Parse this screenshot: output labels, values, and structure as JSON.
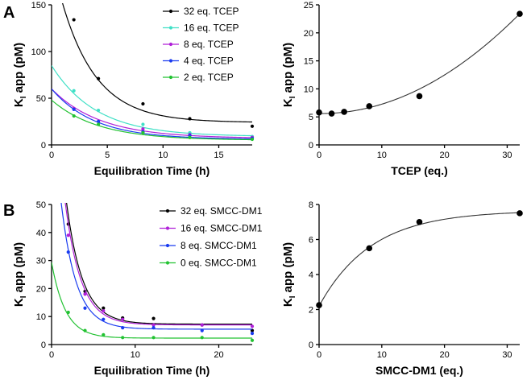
{
  "chart_data": [
    {
      "id": "A-left",
      "panel_label": "A",
      "type": "scatter",
      "xlabel": "Equilibration Time (h)",
      "ylabel_main": "K",
      "ylabel_sub": "I",
      "ylabel_rest": " app (pM)",
      "xlim": [
        0,
        18
      ],
      "ylim": [
        0,
        150
      ],
      "xticks": [
        0,
        5,
        10,
        15
      ],
      "yticks": [
        0,
        50,
        100,
        150
      ],
      "legend": "top-right",
      "series": [
        {
          "name": "32 eq. TCEP",
          "color": "#000000",
          "x": [
            2,
            4.2,
            8.2,
            12.4,
            18
          ],
          "y": [
            134,
            71,
            44,
            28,
            20
          ],
          "fit": {
            "a": 24,
            "b": 175,
            "k": 0.32
          }
        },
        {
          "name": "16 eq. TCEP",
          "color": "#3fe0c6",
          "x": [
            2,
            4.2,
            8.2,
            12.4,
            18
          ],
          "y": [
            58,
            37,
            22,
            13,
            9
          ],
          "fit": {
            "a": 9,
            "b": 76,
            "k": 0.25
          }
        },
        {
          "name": "8 eq. TCEP",
          "color": "#b020d8",
          "x": [
            2,
            4.2,
            8.2,
            12.4,
            18
          ],
          "y": [
            39,
            25,
            17,
            11,
            8
          ],
          "fit": {
            "a": 7,
            "b": 53,
            "k": 0.23
          }
        },
        {
          "name": "4 eq. TCEP",
          "color": "#1a3cf0",
          "x": [
            2,
            4.2,
            8.2,
            12.4,
            18
          ],
          "y": [
            38,
            25,
            14,
            10,
            7
          ],
          "fit": {
            "a": 6,
            "b": 54,
            "k": 0.26
          }
        },
        {
          "name": "2 eq. TCEP",
          "color": "#22c232",
          "x": [
            2,
            4.2,
            8.2,
            12.4,
            18
          ],
          "y": [
            31,
            22,
            13,
            8,
            6
          ],
          "fit": {
            "a": 5,
            "b": 43,
            "k": 0.24
          }
        }
      ]
    },
    {
      "id": "A-right",
      "panel_label": "",
      "type": "scatter",
      "xlabel": "TCEP (eq.)",
      "ylabel_main": "K",
      "ylabel_sub": "I",
      "ylabel_rest": " app (pM)",
      "xlim": [
        0,
        32
      ],
      "ylim": [
        0,
        25
      ],
      "xticks": [
        0,
        10,
        20,
        30
      ],
      "yticks": [
        0,
        5,
        10,
        15,
        20,
        25
      ],
      "series": [
        {
          "name": "TCEP",
          "color": "#000000",
          "x": [
            0,
            2,
            4,
            8,
            16,
            32
          ],
          "y": [
            5.8,
            5.6,
            5.9,
            6.9,
            8.7,
            23.4
          ],
          "fit": {
            "type": "quad",
            "c": 5.6,
            "b": -0.01,
            "a": 0.0177
          }
        }
      ]
    },
    {
      "id": "B-left",
      "panel_label": "B",
      "type": "scatter",
      "xlabel": "Equilibration Time (h)",
      "ylabel_main": "K",
      "ylabel_sub": "I",
      "ylabel_rest": " app (pM)",
      "xlim": [
        0,
        24
      ],
      "ylim": [
        0,
        50
      ],
      "xticks": [
        0,
        10,
        20
      ],
      "yticks": [
        0,
        10,
        20,
        30,
        40,
        50
      ],
      "legend": "top-right",
      "series": [
        {
          "name": "32 eq. SMCC-DM1",
          "color": "#000000",
          "x": [
            2,
            4,
            6.2,
            8.5,
            12.2,
            18,
            24
          ],
          "y": [
            43,
            19,
            13,
            9.5,
            9.3,
            7,
            5
          ],
          "fit": {
            "a": 7.3,
            "b": 110,
            "k": 0.52
          }
        },
        {
          "name": "16 eq. SMCC-DM1",
          "color": "#b020d8",
          "x": [
            2,
            4,
            6.2,
            8.5,
            12.2,
            18,
            24
          ],
          "y": [
            39,
            18,
            12,
            9,
            7,
            7,
            6.5
          ],
          "fit": {
            "a": 7.0,
            "b": 104,
            "k": 0.53
          }
        },
        {
          "name": "8 eq. SMCC-DM1",
          "color": "#1a3cf0",
          "x": [
            2,
            4,
            6.2,
            8.5,
            12.2,
            18,
            24
          ],
          "y": [
            33,
            13,
            9,
            6,
            6,
            5,
            4
          ],
          "fit": {
            "a": 5.5,
            "b": 85,
            "k": 0.55
          }
        },
        {
          "name": "0 eq. SMCC-DM1",
          "color": "#22c232",
          "x": [
            2,
            4,
            6.2,
            8.5,
            12.2,
            18,
            24
          ],
          "y": [
            11.5,
            5,
            3.5,
            2.5,
            2.5,
            2.5,
            1.5
          ],
          "fit": {
            "a": 2.3,
            "b": 27,
            "k": 0.6
          }
        }
      ]
    },
    {
      "id": "B-right",
      "panel_label": "",
      "type": "scatter",
      "xlabel": "SMCC-DM1 (eq.)",
      "ylabel_main": "K",
      "ylabel_sub": "I",
      "ylabel_rest": " app (pM)",
      "xlim": [
        0,
        32
      ],
      "ylim": [
        0,
        8
      ],
      "xticks": [
        0,
        10,
        20,
        30
      ],
      "yticks": [
        0,
        2,
        4,
        6,
        8
      ],
      "series": [
        {
          "name": "SMCC-DM1",
          "color": "#000000",
          "x": [
            0,
            8,
            16,
            32
          ],
          "y": [
            2.25,
            5.5,
            7.0,
            7.5
          ],
          "fit": {
            "type": "sat",
            "ymax": 7.65,
            "y0": 2.2,
            "k": 0.12
          }
        }
      ]
    }
  ]
}
